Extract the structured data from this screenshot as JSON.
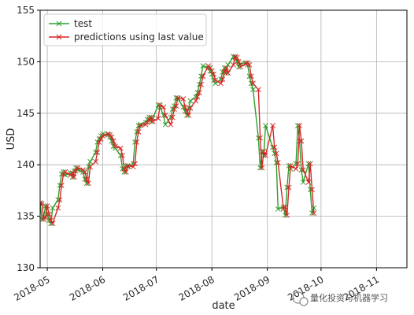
{
  "chart_data": {
    "type": "line",
    "title": "",
    "xlabel": "date",
    "ylabel": "USD",
    "ylim": [
      130,
      155
    ],
    "yticks": [
      "130",
      "135",
      "140",
      "145",
      "150",
      "155"
    ],
    "xlim": [
      "2018-04-27",
      "2018-11-18"
    ],
    "xticks": [
      {
        "date": "2018-05-01",
        "label": "2018-05"
      },
      {
        "date": "2018-06-01",
        "label": "2018-06"
      },
      {
        "date": "2018-07-01",
        "label": "2018-07"
      },
      {
        "date": "2018-08-01",
        "label": "2018-08"
      },
      {
        "date": "2018-09-01",
        "label": "2018-09"
      },
      {
        "date": "2018-10-01",
        "label": "2018-10"
      },
      {
        "date": "2018-11-01",
        "label": "2018-11"
      }
    ],
    "grid": true,
    "legend_position": "top-left",
    "series": [
      {
        "name": "test",
        "color": "#2ca02c",
        "marker": "x",
        "points": [
          [
            "2018-04-27",
            136.2
          ],
          [
            "2018-04-28",
            134.7
          ],
          [
            "2018-04-29",
            134.9
          ],
          [
            "2018-04-30",
            136.0
          ],
          [
            "2018-05-01",
            135.2
          ],
          [
            "2018-05-02",
            134.6
          ],
          [
            "2018-05-03",
            134.3
          ],
          [
            "2018-05-04",
            135.8
          ],
          [
            "2018-05-07",
            136.6
          ],
          [
            "2018-05-08",
            138.0
          ],
          [
            "2018-05-09",
            139.1
          ],
          [
            "2018-05-10",
            139.3
          ],
          [
            "2018-05-11",
            139.0
          ],
          [
            "2018-05-14",
            139.2
          ],
          [
            "2018-05-15",
            138.8
          ],
          [
            "2018-05-16",
            139.4
          ],
          [
            "2018-05-17",
            139.7
          ],
          [
            "2018-05-18",
            139.5
          ],
          [
            "2018-05-21",
            139.3
          ],
          [
            "2018-05-22",
            138.6
          ],
          [
            "2018-05-23",
            138.2
          ],
          [
            "2018-05-24",
            139.8
          ],
          [
            "2018-05-25",
            140.3
          ],
          [
            "2018-05-28",
            141.2
          ],
          [
            "2018-05-29",
            142.2
          ],
          [
            "2018-05-30",
            142.5
          ],
          [
            "2018-05-31",
            142.8
          ],
          [
            "2018-06-01",
            143.0
          ],
          [
            "2018-06-04",
            142.9
          ],
          [
            "2018-06-05",
            142.7
          ],
          [
            "2018-06-06",
            142.3
          ],
          [
            "2018-06-07",
            141.8
          ],
          [
            "2018-06-08",
            141.6
          ],
          [
            "2018-06-11",
            140.9
          ],
          [
            "2018-06-12",
            139.6
          ],
          [
            "2018-06-13",
            139.3
          ],
          [
            "2018-06-14",
            139.9
          ],
          [
            "2018-06-15",
            139.8
          ],
          [
            "2018-06-18",
            140.1
          ],
          [
            "2018-06-19",
            142.2
          ],
          [
            "2018-06-20",
            143.2
          ],
          [
            "2018-06-21",
            143.8
          ],
          [
            "2018-06-22",
            143.9
          ],
          [
            "2018-06-25",
            144.1
          ],
          [
            "2018-06-26",
            144.4
          ],
          [
            "2018-06-27",
            144.6
          ],
          [
            "2018-06-28",
            144.2
          ],
          [
            "2018-06-29",
            144.5
          ],
          [
            "2018-07-02",
            145.8
          ],
          [
            "2018-07-03",
            145.6
          ],
          [
            "2018-07-05",
            144.8
          ],
          [
            "2018-07-06",
            143.9
          ],
          [
            "2018-07-09",
            144.6
          ],
          [
            "2018-07-10",
            145.4
          ],
          [
            "2018-07-11",
            145.7
          ],
          [
            "2018-07-12",
            146.5
          ],
          [
            "2018-07-13",
            146.4
          ],
          [
            "2018-07-16",
            145.6
          ],
          [
            "2018-07-17",
            145.2
          ],
          [
            "2018-07-18",
            144.8
          ],
          [
            "2018-07-19",
            145.5
          ],
          [
            "2018-07-20",
            146.2
          ],
          [
            "2018-07-23",
            146.6
          ],
          [
            "2018-07-24",
            147.0
          ],
          [
            "2018-07-25",
            147.8
          ],
          [
            "2018-07-26",
            148.6
          ],
          [
            "2018-07-27",
            149.6
          ],
          [
            "2018-07-30",
            149.4
          ],
          [
            "2018-07-31",
            149.1
          ],
          [
            "2018-08-01",
            148.8
          ],
          [
            "2018-08-02",
            148.2
          ],
          [
            "2018-08-03",
            147.9
          ],
          [
            "2018-08-06",
            148.3
          ],
          [
            "2018-08-07",
            149.0
          ],
          [
            "2018-08-08",
            149.4
          ],
          [
            "2018-08-09",
            148.9
          ],
          [
            "2018-08-10",
            149.7
          ],
          [
            "2018-08-13",
            150.5
          ],
          [
            "2018-08-14",
            150.4
          ],
          [
            "2018-08-15",
            150.0
          ],
          [
            "2018-08-16",
            149.5
          ],
          [
            "2018-08-17",
            149.8
          ],
          [
            "2018-08-20",
            149.9
          ],
          [
            "2018-08-21",
            149.7
          ],
          [
            "2018-08-22",
            148.6
          ],
          [
            "2018-08-23",
            147.9
          ],
          [
            "2018-08-24",
            147.3
          ],
          [
            "2018-08-27",
            142.6
          ],
          [
            "2018-08-28",
            139.7
          ],
          [
            "2018-08-29",
            141.3
          ],
          [
            "2018-08-30",
            140.9
          ],
          [
            "2018-08-31",
            143.8
          ],
          [
            "2018-09-04",
            141.7
          ],
          [
            "2018-09-05",
            141.1
          ],
          [
            "2018-09-06",
            140.2
          ],
          [
            "2018-09-07",
            135.7
          ],
          [
            "2018-09-10",
            135.9
          ],
          [
            "2018-09-11",
            135.1
          ],
          [
            "2018-09-12",
            137.8
          ],
          [
            "2018-09-13",
            139.9
          ],
          [
            "2018-09-14",
            139.6
          ],
          [
            "2018-09-17",
            140.1
          ],
          [
            "2018-09-18",
            143.8
          ],
          [
            "2018-09-19",
            142.3
          ],
          [
            "2018-09-20",
            139.5
          ],
          [
            "2018-09-21",
            138.3
          ],
          [
            "2018-09-24",
            140.1
          ],
          [
            "2018-09-25",
            137.6
          ],
          [
            "2018-09-26",
            135.3
          ],
          [
            "2018-09-27",
            135.8
          ]
        ]
      },
      {
        "name": "predictions using last value",
        "color": "#d62728",
        "marker": "x",
        "points": [
          [
            "2018-04-27",
            136.3
          ],
          [
            "2018-04-28",
            136.2
          ],
          [
            "2018-04-29",
            134.7
          ],
          [
            "2018-04-30",
            134.9
          ],
          [
            "2018-05-01",
            136.0
          ],
          [
            "2018-05-02",
            135.2
          ],
          [
            "2018-05-03",
            134.6
          ],
          [
            "2018-05-04",
            134.3
          ],
          [
            "2018-05-07",
            135.8
          ],
          [
            "2018-05-08",
            136.6
          ],
          [
            "2018-05-09",
            138.0
          ],
          [
            "2018-05-10",
            139.1
          ],
          [
            "2018-05-11",
            139.3
          ],
          [
            "2018-05-14",
            139.0
          ],
          [
            "2018-05-15",
            139.2
          ],
          [
            "2018-05-16",
            138.8
          ],
          [
            "2018-05-17",
            139.4
          ],
          [
            "2018-05-18",
            139.7
          ],
          [
            "2018-05-21",
            139.5
          ],
          [
            "2018-05-22",
            139.3
          ],
          [
            "2018-05-23",
            138.6
          ],
          [
            "2018-05-24",
            138.2
          ],
          [
            "2018-05-25",
            139.8
          ],
          [
            "2018-05-28",
            140.3
          ],
          [
            "2018-05-29",
            141.2
          ],
          [
            "2018-05-30",
            142.2
          ],
          [
            "2018-05-31",
            142.5
          ],
          [
            "2018-06-01",
            142.8
          ],
          [
            "2018-06-04",
            143.0
          ],
          [
            "2018-06-05",
            142.9
          ],
          [
            "2018-06-06",
            142.7
          ],
          [
            "2018-06-07",
            142.3
          ],
          [
            "2018-06-08",
            141.8
          ],
          [
            "2018-06-11",
            141.6
          ],
          [
            "2018-06-12",
            140.9
          ],
          [
            "2018-06-13",
            139.6
          ],
          [
            "2018-06-14",
            139.3
          ],
          [
            "2018-06-15",
            139.9
          ],
          [
            "2018-06-18",
            139.8
          ],
          [
            "2018-06-19",
            140.1
          ],
          [
            "2018-06-20",
            142.2
          ],
          [
            "2018-06-21",
            143.2
          ],
          [
            "2018-06-22",
            143.8
          ],
          [
            "2018-06-25",
            143.9
          ],
          [
            "2018-06-26",
            144.1
          ],
          [
            "2018-06-27",
            144.4
          ],
          [
            "2018-06-28",
            144.6
          ],
          [
            "2018-06-29",
            144.2
          ],
          [
            "2018-07-02",
            144.5
          ],
          [
            "2018-07-03",
            145.8
          ],
          [
            "2018-07-05",
            145.6
          ],
          [
            "2018-07-06",
            144.8
          ],
          [
            "2018-07-09",
            143.9
          ],
          [
            "2018-07-10",
            144.6
          ],
          [
            "2018-07-11",
            145.4
          ],
          [
            "2018-07-12",
            145.7
          ],
          [
            "2018-07-13",
            146.5
          ],
          [
            "2018-07-16",
            146.4
          ],
          [
            "2018-07-17",
            145.6
          ],
          [
            "2018-07-18",
            145.2
          ],
          [
            "2018-07-19",
            144.8
          ],
          [
            "2018-07-20",
            145.5
          ],
          [
            "2018-07-23",
            146.2
          ],
          [
            "2018-07-24",
            146.6
          ],
          [
            "2018-07-25",
            147.0
          ],
          [
            "2018-07-26",
            147.8
          ],
          [
            "2018-07-27",
            148.6
          ],
          [
            "2018-07-30",
            149.6
          ],
          [
            "2018-07-31",
            149.4
          ],
          [
            "2018-08-01",
            149.1
          ],
          [
            "2018-08-02",
            148.8
          ],
          [
            "2018-08-03",
            148.2
          ],
          [
            "2018-08-06",
            147.9
          ],
          [
            "2018-08-07",
            148.3
          ],
          [
            "2018-08-08",
            149.0
          ],
          [
            "2018-08-09",
            149.4
          ],
          [
            "2018-08-10",
            148.9
          ],
          [
            "2018-08-13",
            149.7
          ],
          [
            "2018-08-14",
            150.5
          ],
          [
            "2018-08-15",
            150.4
          ],
          [
            "2018-08-16",
            150.0
          ],
          [
            "2018-08-17",
            149.5
          ],
          [
            "2018-08-20",
            149.8
          ],
          [
            "2018-08-21",
            149.9
          ],
          [
            "2018-08-22",
            149.7
          ],
          [
            "2018-08-23",
            148.6
          ],
          [
            "2018-08-24",
            147.9
          ],
          [
            "2018-08-27",
            147.3
          ],
          [
            "2018-08-28",
            142.6
          ],
          [
            "2018-08-29",
            139.7
          ],
          [
            "2018-08-30",
            141.3
          ],
          [
            "2018-08-31",
            140.9
          ],
          [
            "2018-09-04",
            143.8
          ],
          [
            "2018-09-05",
            141.7
          ],
          [
            "2018-09-06",
            141.1
          ],
          [
            "2018-09-07",
            140.2
          ],
          [
            "2018-09-10",
            135.7
          ],
          [
            "2018-09-11",
            135.9
          ],
          [
            "2018-09-12",
            135.1
          ],
          [
            "2018-09-13",
            137.8
          ],
          [
            "2018-09-14",
            139.9
          ],
          [
            "2018-09-17",
            139.6
          ],
          [
            "2018-09-18",
            140.1
          ],
          [
            "2018-09-19",
            143.8
          ],
          [
            "2018-09-20",
            142.3
          ],
          [
            "2018-09-21",
            139.5
          ],
          [
            "2018-09-24",
            138.3
          ],
          [
            "2018-09-25",
            140.1
          ],
          [
            "2018-09-26",
            137.6
          ],
          [
            "2018-09-27",
            135.3
          ]
        ]
      }
    ]
  },
  "watermark": {
    "text": "量化投资与机器学习",
    "icon": "chat-bubble-icon"
  }
}
